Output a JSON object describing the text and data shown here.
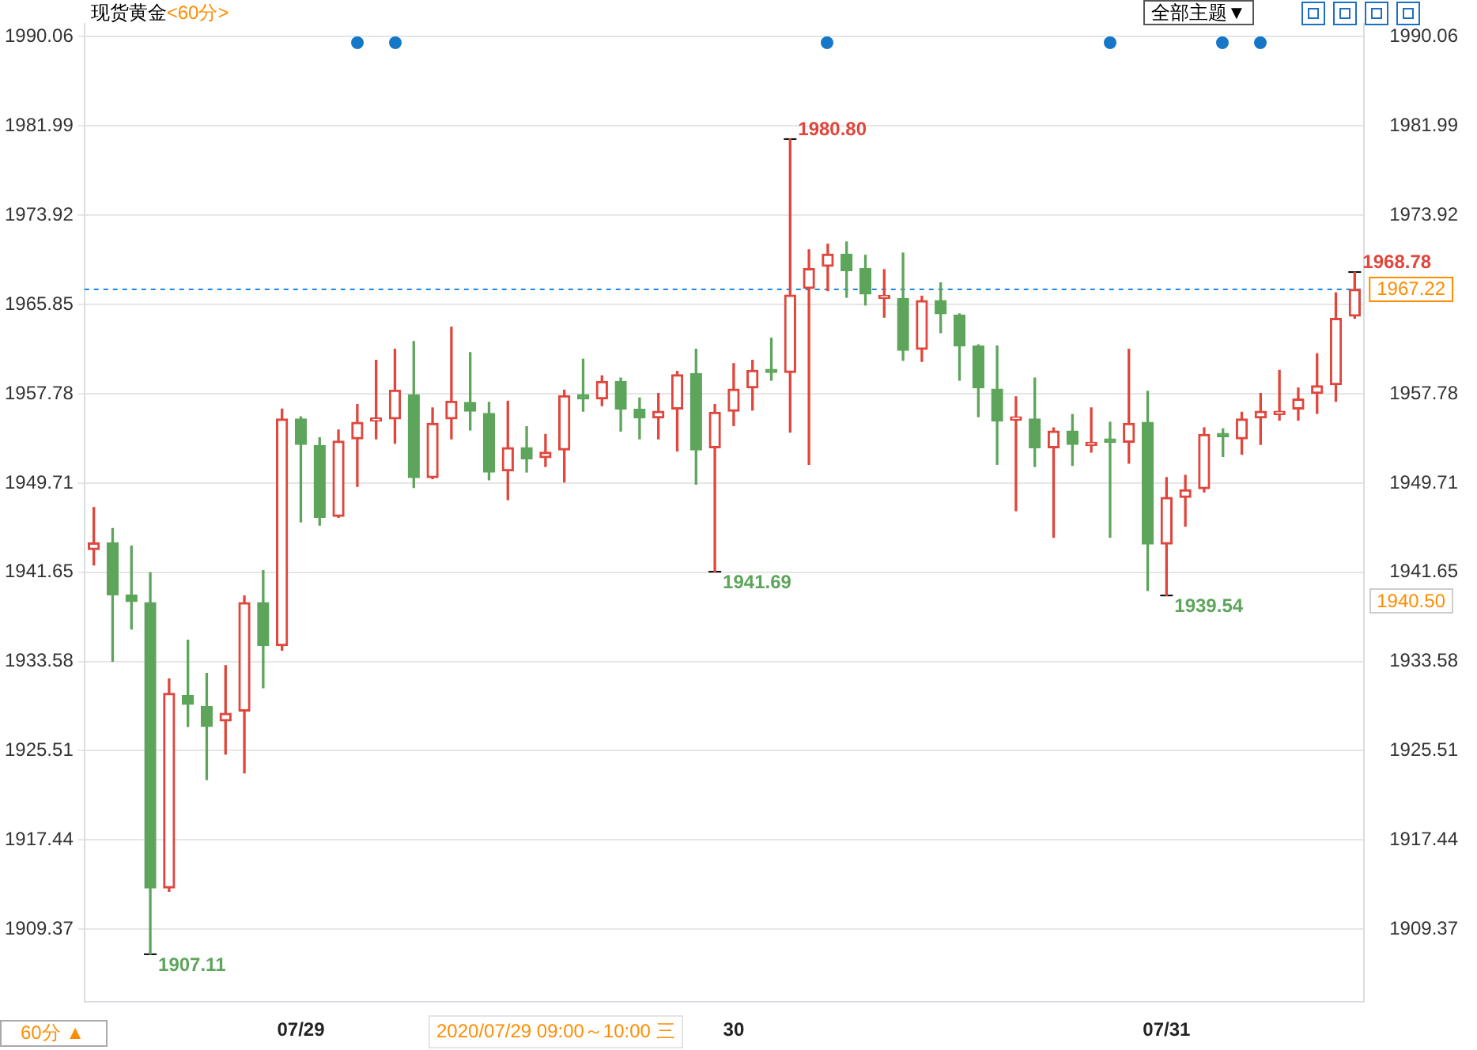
{
  "chart_data": {
    "type": "candlestick",
    "title": "现货黄金",
    "subtitle": "<60分>",
    "categories": [
      null,
      null,
      null,
      null,
      null,
      null,
      null,
      null,
      null,
      null,
      null,
      "07/29",
      null,
      null,
      null,
      null,
      null,
      null,
      null,
      null,
      null,
      null,
      null,
      null,
      null,
      null,
      null,
      null,
      null,
      null,
      null,
      null,
      null,
      null,
      "30",
      null,
      null,
      null,
      null,
      null,
      null,
      null,
      null,
      null,
      null,
      null,
      null,
      null,
      null,
      null,
      null,
      null,
      null,
      null,
      null,
      null,
      null,
      "07/31",
      null,
      null,
      null,
      null,
      null,
      null,
      null,
      null,
      null,
      null
    ],
    "ohlc": [
      [
        1943.7,
        1947.5,
        1942.3,
        1944.3
      ],
      [
        1944.3,
        1945.6,
        1933.6,
        1939.6
      ],
      [
        1939.6,
        1944.0,
        1936.5,
        1939.0
      ],
      [
        1938.9,
        1941.6,
        1907.11,
        1913.1
      ],
      [
        1913.1,
        1932.0,
        1912.8,
        1930.7
      ],
      [
        1930.5,
        1935.5,
        1927.7,
        1929.7
      ],
      [
        1929.5,
        1932.5,
        1922.9,
        1927.7
      ],
      [
        1928.2,
        1933.2,
        1925.2,
        1928.9
      ],
      [
        1929.1,
        1939.5,
        1923.5,
        1938.9
      ],
      [
        1938.9,
        1941.8,
        1931.2,
        1935.0
      ],
      [
        1935.0,
        1956.4,
        1934.6,
        1955.5
      ],
      [
        1955.5,
        1955.7,
        1946.2,
        1953.2
      ],
      [
        1953.1,
        1953.8,
        1945.9,
        1946.6
      ],
      [
        1946.7,
        1954.5,
        1946.6,
        1953.5
      ],
      [
        1953.7,
        1956.8,
        1949.4,
        1955.2
      ],
      [
        1955.3,
        1960.8,
        1953.7,
        1955.4
      ],
      [
        1955.5,
        1961.8,
        1953.3,
        1958.1
      ],
      [
        1957.7,
        1962.5,
        1949.3,
        1950.2
      ],
      [
        1950.2,
        1956.5,
        1950.1,
        1955.1
      ],
      [
        1955.5,
        1963.8,
        1953.7,
        1957.1
      ],
      [
        1957.0,
        1961.5,
        1954.5,
        1956.2
      ],
      [
        1956.0,
        1957.0,
        1950.0,
        1950.7
      ],
      [
        1950.8,
        1957.1,
        1948.2,
        1952.9
      ],
      [
        1952.9,
        1954.8,
        1950.7,
        1951.9
      ],
      [
        1952.0,
        1954.1,
        1951.2,
        1952.5
      ],
      [
        1952.7,
        1958.1,
        1949.8,
        1957.6
      ],
      [
        1957.7,
        1960.9,
        1956.2,
        1957.3
      ],
      [
        1957.3,
        1959.4,
        1956.7,
        1958.9
      ],
      [
        1958.9,
        1959.2,
        1954.4,
        1956.4
      ],
      [
        1956.4,
        1957.4,
        1953.7,
        1955.6
      ],
      [
        1955.6,
        1957.8,
        1953.7,
        1956.2
      ],
      [
        1956.4,
        1959.8,
        1952.6,
        1959.5
      ],
      [
        1959.6,
        1961.8,
        1949.6,
        1952.7
      ],
      [
        1952.9,
        1956.8,
        1941.69,
        1956.1
      ],
      [
        1956.2,
        1960.5,
        1954.9,
        1958.2
      ],
      [
        1958.3,
        1960.8,
        1956.3,
        1959.9
      ],
      [
        1959.9,
        1962.8,
        1959.0,
        1959.7
      ],
      [
        1959.7,
        1980.8,
        1954.3,
        1966.7
      ],
      [
        1967.3,
        1970.8,
        1951.4,
        1969.1
      ],
      [
        1969.3,
        1971.3,
        1967.1,
        1970.4
      ],
      [
        1970.4,
        1971.5,
        1966.5,
        1968.9
      ],
      [
        1969.1,
        1970.3,
        1965.8,
        1966.8
      ],
      [
        1966.4,
        1969.0,
        1964.7,
        1966.5
      ],
      [
        1966.4,
        1970.5,
        1960.8,
        1961.7
      ],
      [
        1961.8,
        1966.6,
        1960.7,
        1966.2
      ],
      [
        1966.2,
        1967.8,
        1963.3,
        1965.0
      ],
      [
        1964.9,
        1965.0,
        1959.0,
        1962.1
      ],
      [
        1962.1,
        1962.2,
        1955.7,
        1958.3
      ],
      [
        1958.2,
        1962.1,
        1951.4,
        1955.3
      ],
      [
        1955.4,
        1957.5,
        1947.2,
        1955.5
      ],
      [
        1955.5,
        1959.2,
        1951.2,
        1952.9
      ],
      [
        1952.9,
        1954.7,
        1944.8,
        1954.4
      ],
      [
        1954.4,
        1955.9,
        1951.3,
        1953.2
      ],
      [
        1953.1,
        1956.5,
        1952.5,
        1953.2
      ],
      [
        1953.7,
        1955.2,
        1944.8,
        1953.4
      ],
      [
        1953.4,
        1961.8,
        1951.5,
        1955.1
      ],
      [
        1955.2,
        1958.0,
        1940.0,
        1944.2
      ],
      [
        1944.2,
        1950.2,
        1939.54,
        1948.4
      ],
      [
        1948.4,
        1950.4,
        1945.8,
        1949.1
      ],
      [
        1949.2,
        1954.7,
        1948.9,
        1954.1
      ],
      [
        1954.0,
        1954.6,
        1952.1,
        1953.9
      ],
      [
        1953.7,
        1956.1,
        1952.3,
        1955.5
      ],
      [
        1955.6,
        1957.8,
        1953.2,
        1956.2
      ],
      [
        1955.9,
        1959.9,
        1955.4,
        1956.2
      ],
      [
        1956.4,
        1958.3,
        1955.4,
        1957.3
      ],
      [
        1957.8,
        1961.4,
        1956.0,
        1958.5
      ],
      [
        1958.6,
        1966.9,
        1957.1,
        1964.6
      ],
      [
        1964.8,
        1968.78,
        1964.6,
        1967.22
      ]
    ],
    "colors": [
      "#e0463c",
      "#5ea55c",
      "#5ea55c",
      "#5ea55c",
      "#e0463c",
      "#5ea55c",
      "#5ea55c",
      "#e0463c",
      "#e0463c",
      "#5ea55c",
      "#e0463c",
      "#5ea55c",
      "#5ea55c",
      "#e0463c",
      "#e0463c",
      "#e0463c",
      "#e0463c",
      "#5ea55c",
      "#e0463c",
      "#e0463c",
      "#5ea55c",
      "#5ea55c",
      "#e0463c",
      "#5ea55c",
      "#e0463c",
      "#e0463c",
      "#5ea55c",
      "#e0463c",
      "#5ea55c",
      "#5ea55c",
      "#e0463c",
      "#e0463c",
      "#5ea55c",
      "#e0463c",
      "#e0463c",
      "#e0463c",
      "#5ea55c",
      "#e0463c",
      "#e0463c",
      "#e0463c",
      "#5ea55c",
      "#5ea55c",
      "#e0463c",
      "#5ea55c",
      "#e0463c",
      "#5ea55c",
      "#5ea55c",
      "#5ea55c",
      "#5ea55c",
      "#e0463c",
      "#5ea55c",
      "#e0463c",
      "#5ea55c",
      "#e0463c",
      "#5ea55c",
      "#e0463c",
      "#5ea55c",
      "#e0463c",
      "#e0463c",
      "#e0463c",
      "#5ea55c",
      "#e0463c",
      "#e0463c",
      "#e0463c",
      "#e0463c",
      "#e0463c",
      "#e0463c",
      "#e0463c"
    ],
    "ylim": [
      1902.8,
      1991.2
    ],
    "yticks": [
      1909.37,
      1917.44,
      1925.51,
      1933.58,
      1941.65,
      1949.71,
      1957.78,
      1965.85,
      1973.92,
      1981.99,
      1990.06
    ],
    "y2lim": [
      1902.8,
      1991.2
    ],
    "y2ticks": [
      1909.37,
      1917.44,
      1925.51,
      1933.58,
      1941.65,
      1949.71,
      1957.78,
      1973.92,
      1981.99,
      1990.06
    ],
    "grid": "y",
    "legend": false,
    "ref_lines": [
      {
        "axis": "y",
        "value": 1967.22,
        "label": "1967.22",
        "color": "#1e88e5",
        "line_style": "dashed"
      }
    ],
    "annotations": [
      "1980.80",
      "1968.78",
      "1941.69",
      "1939.54",
      "1907.11",
      "全部主题▼",
      "60分 ▲",
      "2020/07/29 09:00～10:00 三",
      "1940.50"
    ]
  }
}
